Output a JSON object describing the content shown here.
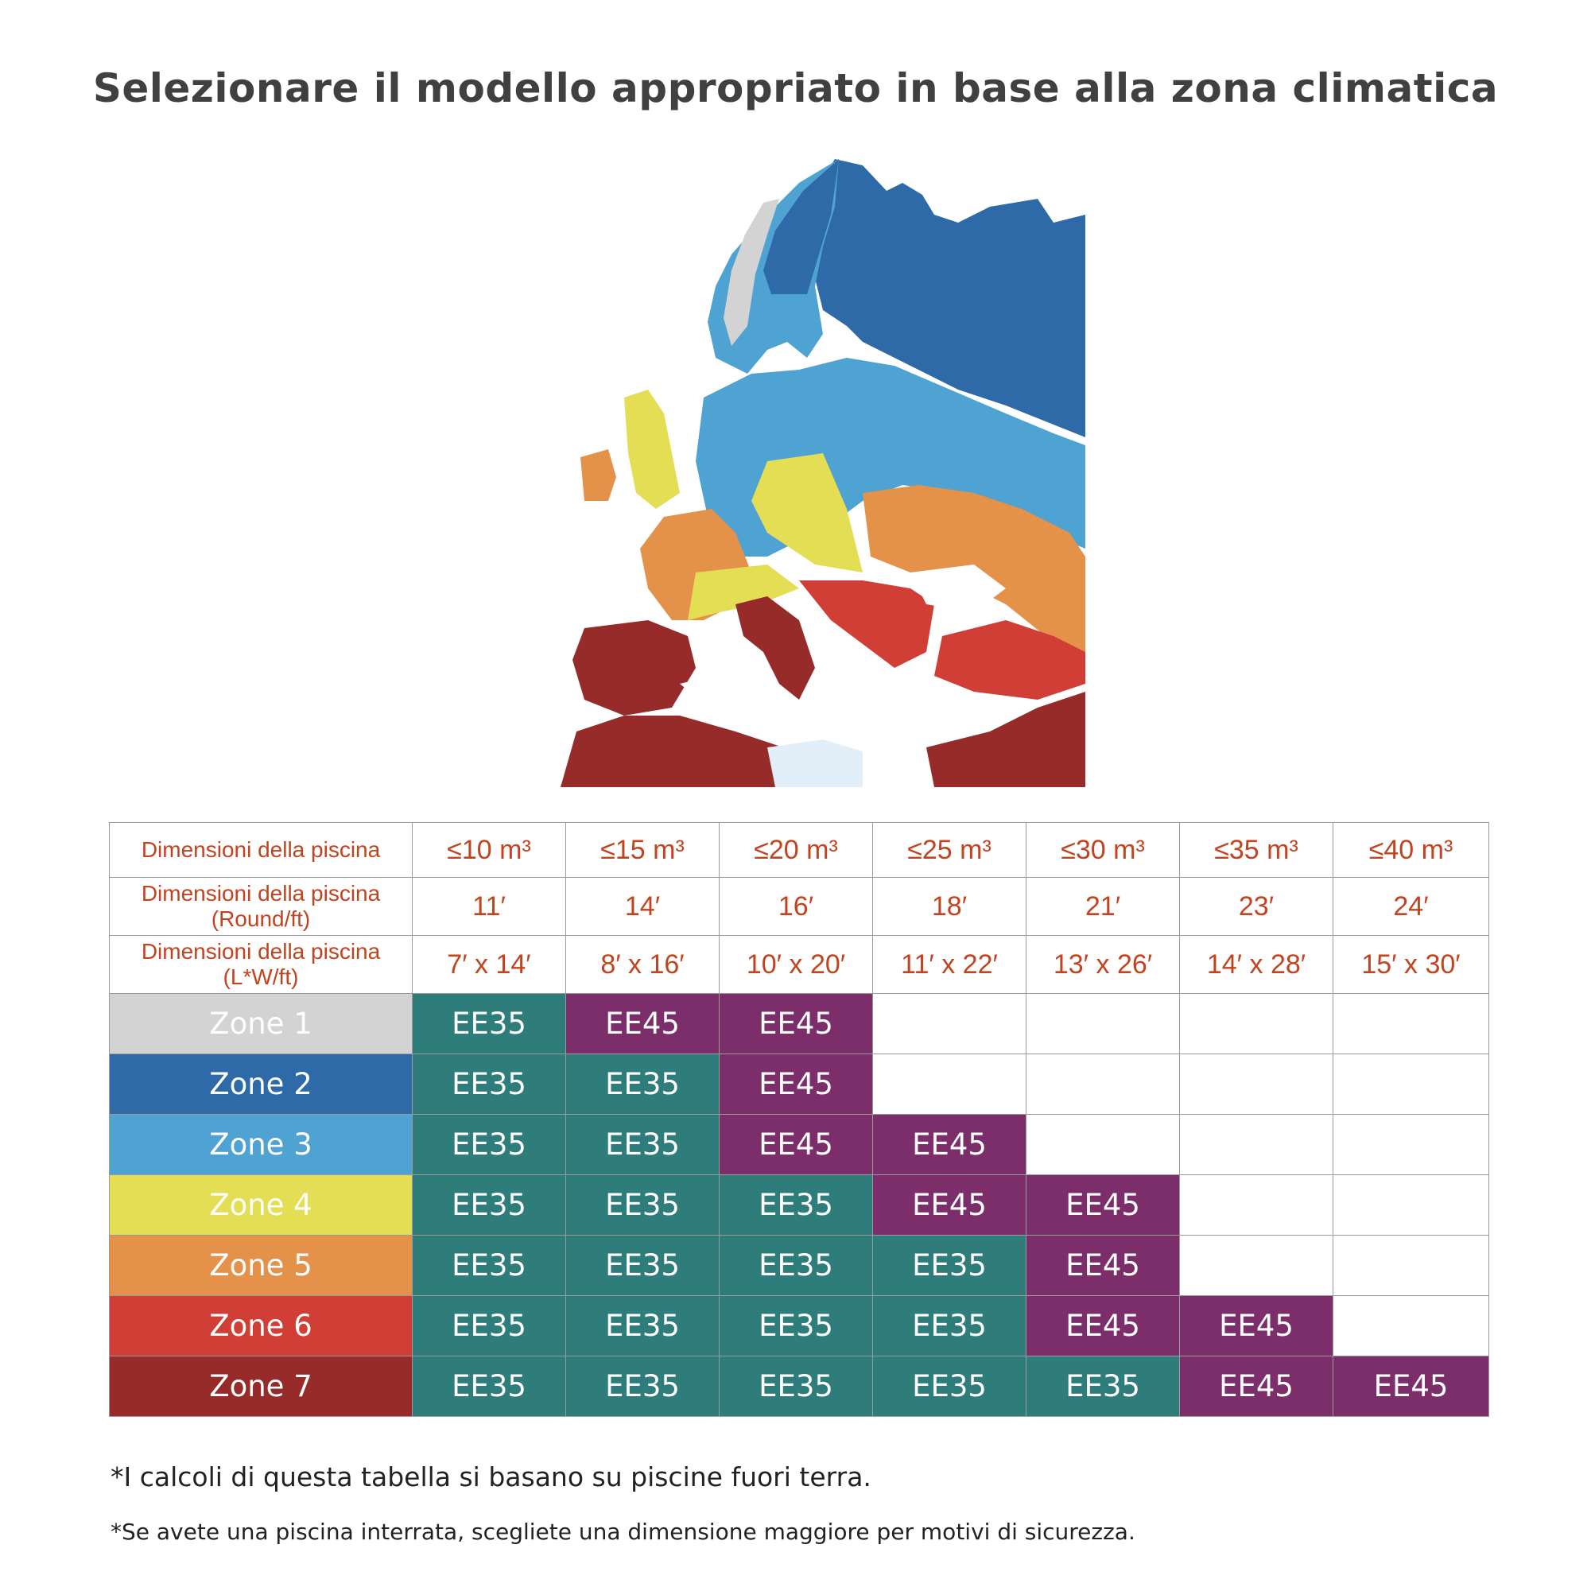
{
  "title": "Selezionare il modello appropriato in base alla zona climatica",
  "colors": {
    "zone1": "#d3d3d3",
    "zone2": "#2f6aa8",
    "zone3": "#4fa3d3",
    "zone4": "#e4de55",
    "zone5": "#e4924a",
    "zone6": "#d03e35",
    "zone7": "#962b2a",
    "ee35": "#2e7d7a",
    "ee45": "#7b2e6a",
    "header_text": "#c2431f"
  },
  "table": {
    "header_rows": [
      {
        "label": "Dimensioni della piscina",
        "values": [
          "≤10 m³",
          "≤15 m³",
          "≤20 m³",
          "≤25 m³",
          "≤30 m³",
          "≤35 m³",
          "≤40 m³"
        ]
      },
      {
        "label": "Dimensioni della piscina (Round/ft)",
        "values": [
          "11′",
          "14′",
          "16′",
          "18′",
          "21′",
          "23′",
          "24′"
        ]
      },
      {
        "label": "Dimensioni della piscina (L*W/ft)",
        "values": [
          "7′ x 14′",
          "8′ x 16′",
          "10′ x 20′",
          "11′ x 22′",
          "13′ x 26′",
          "14′ x 28′",
          "15′ x 30′"
        ]
      }
    ],
    "zones": [
      {
        "name": "Zone 1",
        "cells": [
          "EE35",
          "EE45",
          "EE45",
          "",
          "",
          "",
          ""
        ]
      },
      {
        "name": "Zone 2",
        "cells": [
          "EE35",
          "EE35",
          "EE45",
          "",
          "",
          "",
          ""
        ]
      },
      {
        "name": "Zone 3",
        "cells": [
          "EE35",
          "EE35",
          "EE45",
          "EE45",
          "",
          "",
          ""
        ]
      },
      {
        "name": "Zone 4",
        "cells": [
          "EE35",
          "EE35",
          "EE35",
          "EE45",
          "EE45",
          "",
          ""
        ]
      },
      {
        "name": "Zone 5",
        "cells": [
          "EE35",
          "EE35",
          "EE35",
          "EE35",
          "EE45",
          "",
          ""
        ]
      },
      {
        "name": "Zone 6",
        "cells": [
          "EE35",
          "EE35",
          "EE35",
          "EE35",
          "EE45",
          "EE45",
          ""
        ]
      },
      {
        "name": "Zone 7",
        "cells": [
          "EE35",
          "EE35",
          "EE35",
          "EE35",
          "EE35",
          "EE45",
          "EE45"
        ]
      }
    ]
  },
  "notes": {
    "note1": "*I calcoli di questa tabella si basano su piscine fuori terra.",
    "note2": "*Se avete una piscina interrata, sceglietе una dimensione maggiore per motivi di sicurezza."
  }
}
